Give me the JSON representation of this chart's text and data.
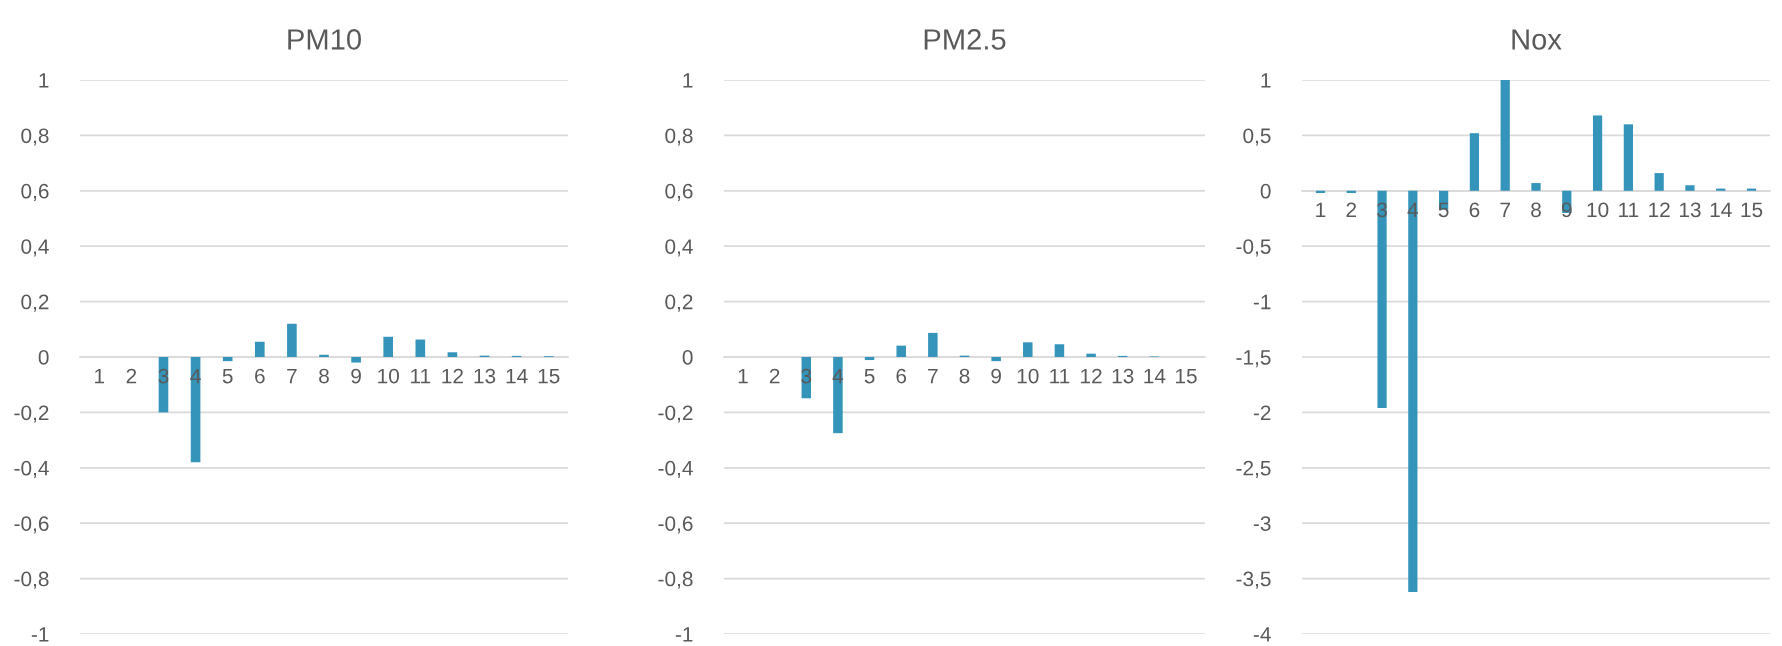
{
  "chart_data": [
    {
      "type": "bar",
      "title": "PM10",
      "categories": [
        "1",
        "2",
        "3",
        "4",
        "5",
        "6",
        "7",
        "8",
        "9",
        "10",
        "11",
        "12",
        "13",
        "14",
        "15"
      ],
      "series": [
        {
          "color": "#3494ba",
          "values": [
            0,
            0,
            -0.2,
            -0.38,
            -0.015,
            0.055,
            0.12,
            0.008,
            -0.02,
            0.073,
            0.063,
            0.017,
            0.005,
            0.004,
            0.003
          ]
        }
      ],
      "ylim": [
        -1,
        1
      ],
      "yticks": [
        {
          "value": -1,
          "label": "-1"
        },
        {
          "value": -0.8,
          "label": "-0,8"
        },
        {
          "value": -0.6,
          "label": "-0,6"
        },
        {
          "value": -0.4,
          "label": "-0,4"
        },
        {
          "value": -0.2,
          "label": "-0,2"
        },
        0,
        {
          "value": 0.2,
          "label": "0,2"
        },
        {
          "value": 0.4,
          "label": "0,4"
        },
        {
          "value": 0.6,
          "label": "0,6"
        },
        {
          "value": 0.8,
          "label": "0,8"
        },
        1
      ],
      "grid": "y"
    },
    {
      "type": "bar",
      "title": "PM2.5",
      "categories": [
        "1",
        "2",
        "3",
        "4",
        "5",
        "6",
        "7",
        "8",
        "9",
        "10",
        "11",
        "12",
        "13",
        "14",
        "15"
      ],
      "series": [
        {
          "color": "#3494ba",
          "values": [
            0,
            0,
            -0.149,
            -0.275,
            -0.011,
            0.041,
            0.087,
            0.005,
            -0.015,
            0.053,
            0.046,
            0.012,
            0.004,
            0.002,
            null
          ]
        }
      ],
      "ylim": [
        -1,
        1
      ],
      "yticks": [
        {
          "value": -1,
          "label": "-1"
        },
        {
          "value": -0.8,
          "label": "-0,8"
        },
        {
          "value": -0.6,
          "label": "-0,6"
        },
        {
          "value": -0.4,
          "label": "-0,4"
        },
        {
          "value": -0.2,
          "label": "-0,2"
        },
        0,
        {
          "value": 0.2,
          "label": "0,2"
        },
        {
          "value": 0.4,
          "label": "0,4"
        },
        {
          "value": 0.6,
          "label": "0,6"
        },
        {
          "value": 0.8,
          "label": "0,8"
        },
        1
      ],
      "grid": "y"
    },
    {
      "type": "bar",
      "title": "Nox",
      "categories": [
        "1",
        "2",
        "3",
        "4",
        "5",
        "6",
        "7",
        "8",
        "9",
        "10",
        "11",
        "12",
        "13",
        "14",
        "15"
      ],
      "series": [
        {
          "color": "#3494ba",
          "values": [
            -0.02,
            -0.02,
            -1.96,
            -3.62,
            -0.17,
            0.52,
            1.0,
            0.07,
            -0.2,
            0.68,
            0.6,
            0.16,
            0.05,
            0.02,
            0.02
          ]
        }
      ],
      "ylim": [
        -4,
        1
      ],
      "yticks": [
        -4,
        {
          "value": -3.5,
          "label": "-3,5"
        },
        -3,
        {
          "value": -2.5,
          "label": "-2,5"
        },
        -2,
        {
          "value": -1.5,
          "label": "-1,5"
        },
        -1,
        {
          "value": -0.5,
          "label": "-0,5"
        },
        0,
        {
          "value": 0.5,
          "label": "0,5"
        },
        1
      ],
      "grid": "y"
    }
  ]
}
